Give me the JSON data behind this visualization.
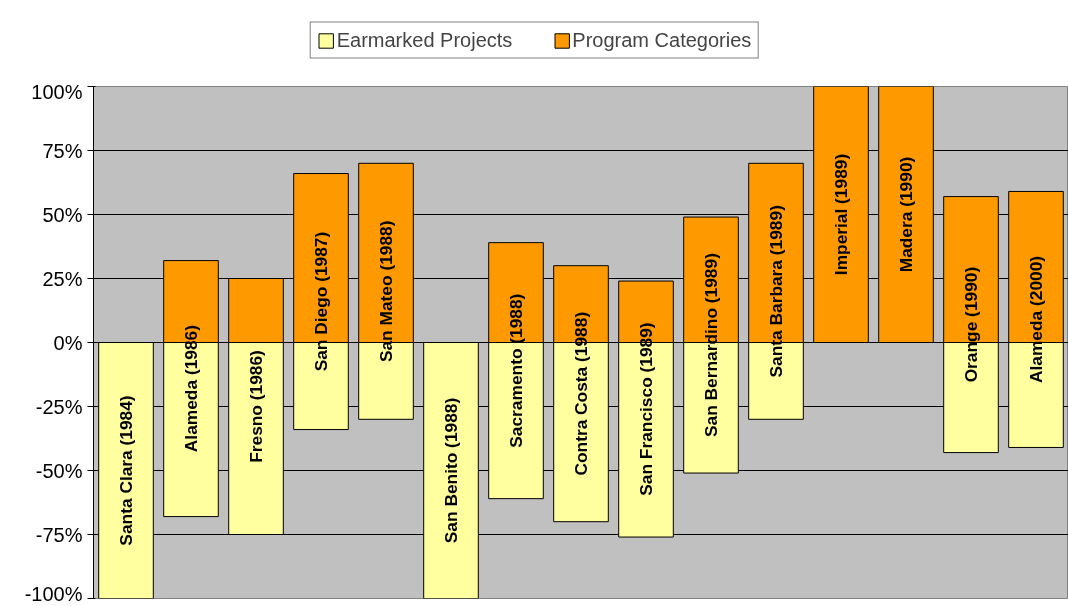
{
  "chart_data": {
    "type": "bar",
    "stacked": true,
    "categories": [
      "Santa Clara (1984)",
      "Alameda (1986)",
      "Fresno (1986)",
      "San Diego (1987)",
      "San Mateo (1988)",
      "San Benito (1988)",
      "Sacramento (1988)",
      "Contra Costa (1988)",
      "San Francisco (1989)",
      "San Bernardino (1989)",
      "Santa Barbara (1989)",
      "Imperial (1989)",
      "Madera (1990)",
      "Orange (1990)",
      "Alameda (2000)"
    ],
    "series": [
      {
        "name": "Earmarked Projects",
        "color": "#ffffa0",
        "values": [
          -100,
          -68,
          -75,
          -34,
          -30,
          -100,
          -61,
          -70,
          -76,
          -51,
          -30,
          0,
          0,
          -43,
          -41
        ]
      },
      {
        "name": "Program Categories",
        "color": "#ff9900",
        "values": [
          0,
          32,
          25,
          66,
          70,
          0,
          39,
          30,
          24,
          49,
          70,
          100,
          100,
          57,
          59
        ]
      }
    ],
    "ylim": [
      -100,
      100
    ],
    "yticks": [
      {
        "value": -100,
        "label": "-100%"
      },
      {
        "value": -75,
        "label": "-75%"
      },
      {
        "value": -50,
        "label": "-50%"
      },
      {
        "value": -25,
        "label": "-25%"
      },
      {
        "value": 0,
        "label": "0%"
      },
      {
        "value": 25,
        "label": "25%"
      },
      {
        "value": 50,
        "label": "50%"
      },
      {
        "value": 75,
        "label": "75%"
      },
      {
        "value": 100,
        "label": "100%"
      }
    ],
    "grid": "y",
    "legend": "top"
  }
}
